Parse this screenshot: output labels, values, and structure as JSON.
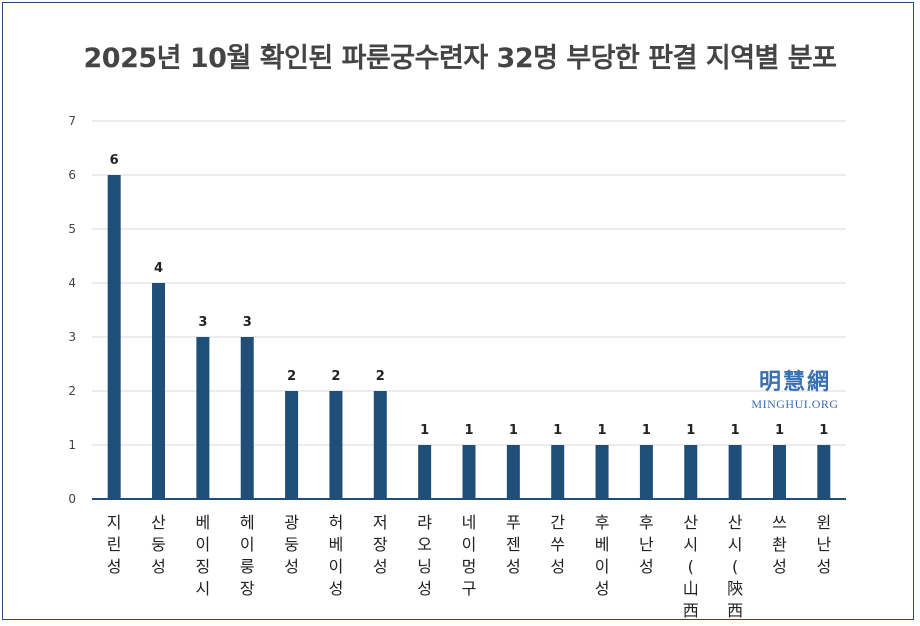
{
  "chart_data": {
    "type": "bar",
    "title": "2025년 10월 확인된 파룬궁수련자 32명 부당한 판결 지역별 분포",
    "categories": [
      "지린성",
      "산둥성",
      "베이징시",
      "헤이룽장",
      "광둥성",
      "허베이성",
      "저장성",
      "랴오닝성",
      "네이멍구",
      "푸젠성",
      "간쑤성",
      "후베이성",
      "후난성",
      "산시(山西)",
      "산시(陝西)",
      "쓰촨성",
      "윈난성"
    ],
    "values": [
      6,
      4,
      3,
      3,
      2,
      2,
      2,
      1,
      1,
      1,
      1,
      1,
      1,
      1,
      1,
      1,
      1
    ],
    "ylim": [
      0,
      7
    ],
    "yticks": [
      0,
      1,
      2,
      3,
      4,
      5,
      6,
      7
    ],
    "grid": true,
    "legend": "none",
    "data_labels": true,
    "bar_color": "#1f4e79",
    "grid_color": "#d9d9d9"
  },
  "watermark": {
    "chinese": "明慧網",
    "english": "MINGHUI.ORG"
  }
}
